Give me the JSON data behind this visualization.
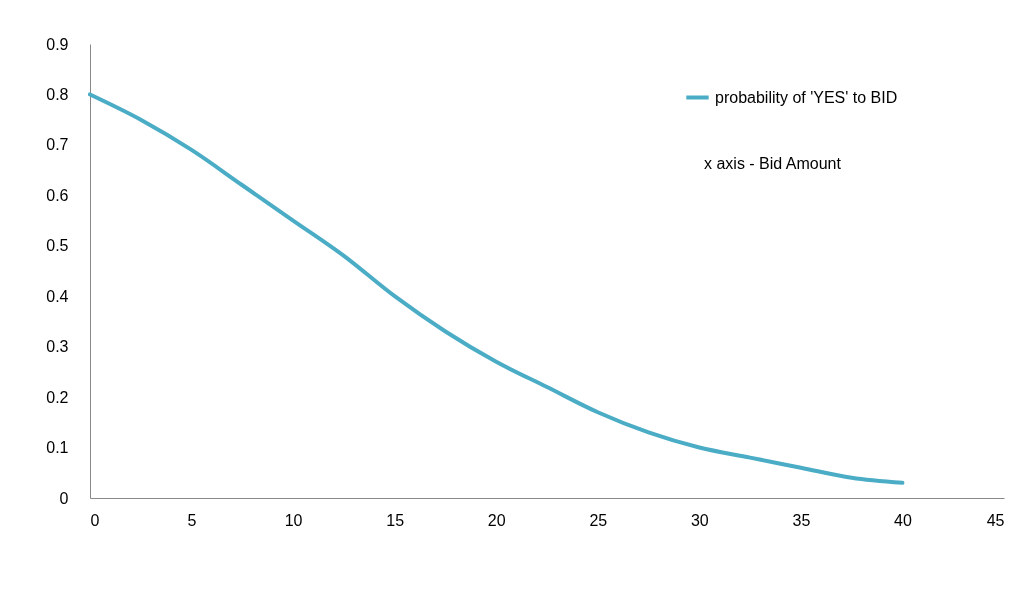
{
  "chart_data": {
    "type": "line",
    "x": [
      0,
      2.5,
      5,
      7.5,
      10,
      12.5,
      15,
      17.5,
      20,
      22.5,
      25,
      27.5,
      30,
      32.5,
      35,
      37.5,
      40
    ],
    "series": [
      {
        "name": "probability of 'YES' to BID",
        "color": "#4bacc6",
        "values": [
          0.8,
          0.75,
          0.69,
          0.62,
          0.55,
          0.48,
          0.4,
          0.33,
          0.27,
          0.22,
          0.17,
          0.13,
          0.1,
          0.08,
          0.06,
          0.04,
          0.03
        ]
      }
    ],
    "xlim": [
      0,
      45
    ],
    "xticks": [
      0,
      5,
      10,
      15,
      20,
      25,
      30,
      35,
      40,
      45
    ],
    "ylim": [
      0,
      0.9
    ],
    "yticks": [
      0,
      0.1,
      0.2,
      0.3,
      0.4,
      0.5,
      0.6,
      0.7,
      0.8,
      0.9
    ],
    "annotations": [
      "x axis - Bid Amount"
    ],
    "legend": "top right",
    "grid": false,
    "marker": "none",
    "line_style": "solid"
  }
}
